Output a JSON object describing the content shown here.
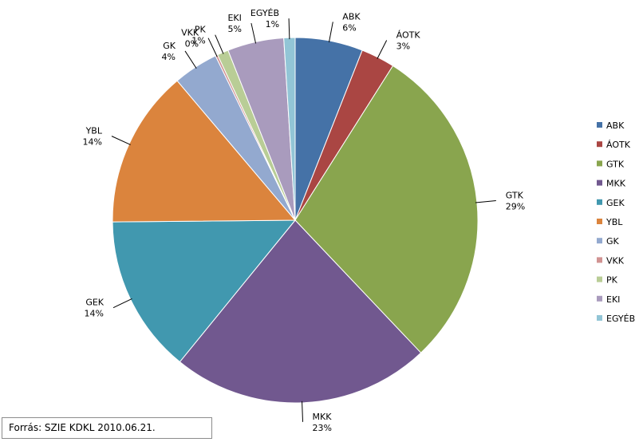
{
  "chart_data": {
    "type": "pie",
    "start_angle_deg": 0,
    "direction": "clockwise",
    "slices": [
      {
        "label": "ABK",
        "value": 6,
        "value_label": "6%",
        "color": "#4572A7"
      },
      {
        "label": "ÁOTK",
        "value": 3,
        "value_label": "3%",
        "color": "#AA4643"
      },
      {
        "label": "GTK",
        "value": 29,
        "value_label": "29%",
        "color": "#89A54E"
      },
      {
        "label": "MKK",
        "value": 23,
        "value_label": "23%",
        "color": "#71588F"
      },
      {
        "label": "GEK",
        "value": 14,
        "value_label": "14%",
        "color": "#4198AF"
      },
      {
        "label": "YBL",
        "value": 14,
        "value_label": "14%",
        "color": "#DB843D"
      },
      {
        "label": "GK",
        "value": 4,
        "value_label": "4%",
        "color": "#93A9CF"
      },
      {
        "label": "VKK",
        "value": 0.2,
        "value_label": "0%",
        "color": "#D19392"
      },
      {
        "label": "PK",
        "value": 1,
        "value_label": "1%",
        "color": "#B9CD96"
      },
      {
        "label": "EKI",
        "value": 5,
        "value_label": "5%",
        "color": "#A99BBD"
      },
      {
        "label": "EGYÉB",
        "value": 1,
        "value_label": "1%",
        "color": "#92C5D6"
      }
    ],
    "legend": {
      "placement": "right",
      "entries": [
        "ABK",
        "ÁOTK",
        "GTK",
        "MKK",
        "GEK",
        "YBL",
        "GK",
        "VKK",
        "PK",
        "EKI",
        "EGYÉB"
      ]
    },
    "data_labels": "outside with leader lines"
  },
  "source_note": "Forrás: SZIE KDKL 2010.06.21."
}
